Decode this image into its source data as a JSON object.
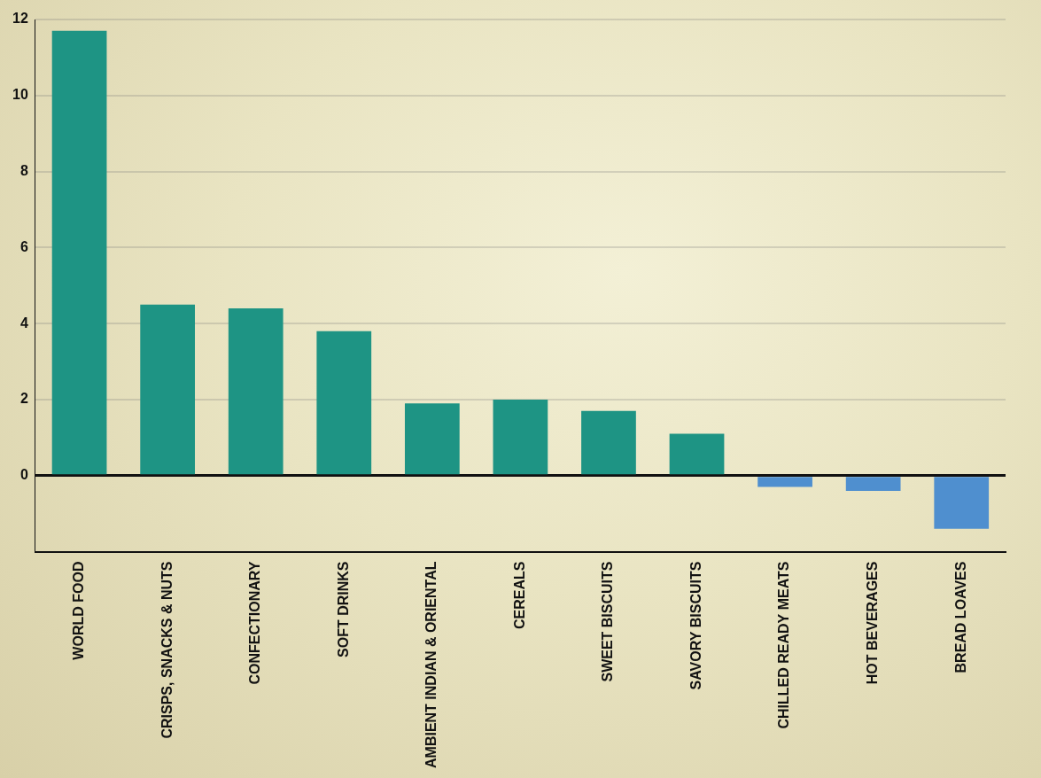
{
  "chart_data": {
    "type": "bar",
    "categories": [
      "WORLD FOOD",
      "CRISPS, SNACKS & NUTS",
      "CONFECTIONARY",
      "SOFT DRINKS",
      "AMBIENT INDIAN & ORIENTAL",
      "CEREALS",
      "SWEET BISCUITS",
      "SAVORY BISCUITS",
      "CHILLED READY MEATS",
      "HOT BEVERAGES",
      "BREAD LOAVES"
    ],
    "values": [
      11.7,
      4.5,
      4.4,
      3.8,
      1.9,
      2.0,
      1.7,
      1.1,
      -0.3,
      -0.4,
      -1.4
    ],
    "colors": [
      "#1e9484",
      "#1e9484",
      "#1e9484",
      "#1e9484",
      "#1e9484",
      "#1e9484",
      "#1e9484",
      "#1e9484",
      "#4f8fcf",
      "#4f8fcf",
      "#4f8fcf"
    ],
    "ylim": [
      -2,
      12
    ],
    "yticks": [
      0,
      2,
      4,
      6,
      8,
      10,
      12
    ],
    "grid": true
  }
}
